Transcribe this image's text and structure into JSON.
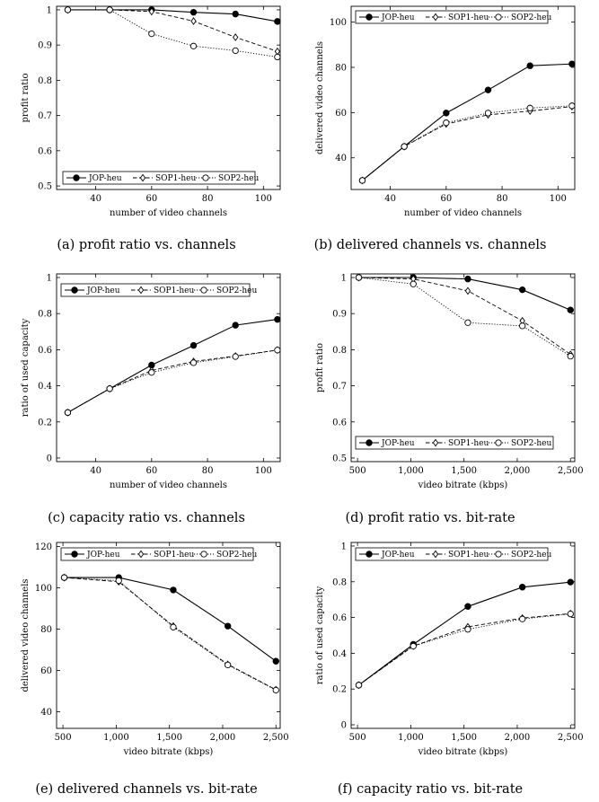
{
  "legend_labels": [
    "JOP-heu",
    "SOP1-heu",
    "SOP2-heu"
  ],
  "chart_data": [
    {
      "type": "line",
      "caption": "(a) profit ratio vs. channels",
      "xlabel": "number of video channels",
      "ylabel": "profit ratio",
      "xlim": [
        26,
        106
      ],
      "ylim": [
        0.49,
        1.01
      ],
      "xticks": [
        40,
        60,
        80,
        100
      ],
      "xtick_labels": [
        "40",
        "60",
        "80",
        "100"
      ],
      "yticks": [
        0.5,
        0.6,
        0.7,
        0.8,
        0.9,
        1
      ],
      "ytick_labels": [
        "0.5",
        "0.6",
        "0.7",
        "0.8",
        "0.9",
        "1"
      ],
      "legend_position": "bottom",
      "x": [
        30,
        45,
        60,
        75,
        90,
        105
      ],
      "series": [
        {
          "name": "JOP-heu",
          "values": [
            1,
            1,
            1,
            0.993,
            0.988,
            0.967
          ]
        },
        {
          "name": "SOP1-heu",
          "values": [
            1,
            1,
            0.995,
            0.968,
            0.922,
            0.882
          ]
        },
        {
          "name": "SOP2-heu",
          "values": [
            1,
            1,
            0.932,
            0.897,
            0.884,
            0.866
          ]
        }
      ]
    },
    {
      "type": "line",
      "caption": "(b) delivered channels vs. channels",
      "xlabel": "number of video channels",
      "ylabel": "delivered video channels",
      "xlim": [
        26,
        106
      ],
      "ylim": [
        26,
        107
      ],
      "xticks": [
        40,
        60,
        80,
        100
      ],
      "xtick_labels": [
        "40",
        "60",
        "80",
        "100"
      ],
      "yticks": [
        40,
        60,
        80,
        100
      ],
      "ytick_labels": [
        "40",
        "60",
        "80",
        "100"
      ],
      "legend_position": "top",
      "x": [
        30,
        45,
        60,
        75,
        90,
        105
      ],
      "series": [
        {
          "name": "JOP-heu",
          "values": [
            30,
            45,
            59.8,
            70,
            80.7,
            81.5
          ]
        },
        {
          "name": "SOP1-heu",
          "values": [
            30,
            45,
            55,
            59,
            60.7,
            62.7
          ]
        },
        {
          "name": "SOP2-heu",
          "values": [
            30,
            45,
            55.5,
            59.8,
            62,
            63
          ]
        }
      ]
    },
    {
      "type": "line",
      "caption": "(c) capacity ratio vs. channels",
      "xlabel": "number of video channels",
      "ylabel": "ratio of used capacity",
      "xlim": [
        26,
        106
      ],
      "ylim": [
        -0.02,
        1.02
      ],
      "xticks": [
        40,
        60,
        80,
        100
      ],
      "xtick_labels": [
        "40",
        "60",
        "80",
        "100"
      ],
      "yticks": [
        0,
        0.2,
        0.4,
        0.6,
        0.8,
        1
      ],
      "ytick_labels": [
        "0",
        "0.2",
        "0.4",
        "0.6",
        "0.8",
        "1"
      ],
      "legend_position": "top",
      "x": [
        30,
        45,
        60,
        75,
        90,
        105
      ],
      "series": [
        {
          "name": "JOP-heu",
          "values": [
            0.252,
            0.384,
            0.515,
            0.624,
            0.736,
            0.768
          ]
        },
        {
          "name": "SOP1-heu",
          "values": [
            0.252,
            0.384,
            0.485,
            0.535,
            0.565,
            0.598
          ]
        },
        {
          "name": "SOP2-heu",
          "values": [
            0.252,
            0.384,
            0.474,
            0.528,
            0.562,
            0.598
          ]
        }
      ]
    },
    {
      "type": "line",
      "caption": "(d) profit ratio vs. bit-rate",
      "xlabel": "video bitrate (kbps)",
      "ylabel": "profit ratio",
      "xlim": [
        440,
        2540
      ],
      "ylim": [
        0.49,
        1.01
      ],
      "xticks": [
        500,
        1000,
        1500,
        2000,
        2500
      ],
      "xtick_labels": [
        "500",
        "1,000",
        "1,500",
        "2,000",
        "2,500"
      ],
      "yticks": [
        0.5,
        0.6,
        0.7,
        0.8,
        0.9,
        1
      ],
      "ytick_labels": [
        "0.5",
        "0.6",
        "0.7",
        "0.8",
        "0.9",
        "1"
      ],
      "legend_position": "bottom",
      "x": [
        512,
        1024,
        1536,
        2048,
        2500
      ],
      "series": [
        {
          "name": "JOP-heu",
          "values": [
            1,
            1,
            0.996,
            0.966,
            0.91
          ]
        },
        {
          "name": "SOP1-heu",
          "values": [
            1,
            0.996,
            0.963,
            0.88,
            0.787
          ]
        },
        {
          "name": "SOP2-heu",
          "values": [
            1,
            0.982,
            0.875,
            0.866,
            0.782
          ]
        }
      ]
    },
    {
      "type": "line",
      "caption": "(e) delivered channels vs. bit-rate",
      "xlabel": "video bitrate (kbps)",
      "ylabel": "delivered video channels",
      "xlim": [
        440,
        2540
      ],
      "ylim": [
        32,
        122
      ],
      "xticks": [
        500,
        1000,
        1500,
        2000,
        2500
      ],
      "xtick_labels": [
        "500",
        "1,000",
        "1,500",
        "2,000",
        "2,500"
      ],
      "yticks": [
        40,
        60,
        80,
        100,
        120
      ],
      "ytick_labels": [
        "40",
        "60",
        "80",
        "100",
        "120"
      ],
      "legend_position": "top",
      "x": [
        512,
        1024,
        1536,
        2048,
        2500
      ],
      "series": [
        {
          "name": "JOP-heu",
          "values": [
            105,
            105,
            99,
            81.5,
            64.5
          ]
        },
        {
          "name": "SOP1-heu",
          "values": [
            105,
            103,
            81.5,
            63,
            50.7
          ]
        },
        {
          "name": "SOP2-heu",
          "values": [
            105,
            103.5,
            81,
            62.7,
            50.5
          ]
        }
      ]
    },
    {
      "type": "line",
      "caption": "(f) capacity ratio vs. bit-rate",
      "xlabel": "video bitrate (kbps)",
      "ylabel": "ratio of used capacity",
      "xlim": [
        440,
        2540
      ],
      "ylim": [
        -0.02,
        1.02
      ],
      "xticks": [
        500,
        1000,
        1500,
        2000,
        2500
      ],
      "xtick_labels": [
        "500",
        "1,000",
        "1,500",
        "2,000",
        "2,500"
      ],
      "yticks": [
        0,
        0.2,
        0.4,
        0.6,
        0.8,
        1
      ],
      "ytick_labels": [
        "0",
        "0.2",
        "0.4",
        "0.6",
        "0.8",
        "1"
      ],
      "legend_position": "top",
      "x": [
        512,
        1024,
        1536,
        2048,
        2500
      ],
      "series": [
        {
          "name": "JOP-heu",
          "values": [
            0.222,
            0.45,
            0.662,
            0.77,
            0.798
          ]
        },
        {
          "name": "SOP1-heu",
          "values": [
            0.222,
            0.44,
            0.548,
            0.597,
            0.622
          ]
        },
        {
          "name": "SOP2-heu",
          "values": [
            0.222,
            0.44,
            0.534,
            0.592,
            0.62
          ]
        }
      ]
    }
  ]
}
